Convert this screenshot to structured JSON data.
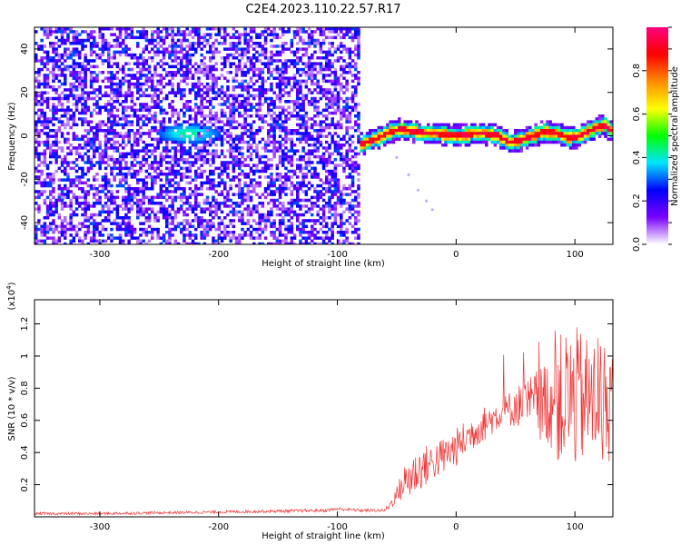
{
  "title": "C2E4.2023.110.22.57.R17",
  "chart_data": [
    {
      "type": "heatmap",
      "name": "spectrogram",
      "xlabel": "Height of straight line (km)",
      "ylabel": "Frequency (Hz)",
      "xlim": [
        -355,
        132
      ],
      "ylim": [
        -50,
        50
      ],
      "x_ticks": [
        -300,
        -200,
        -100,
        0,
        100
      ],
      "y_ticks": [
        -40,
        -20,
        0,
        20,
        40
      ],
      "colorbar": {
        "label": "Normalized spectral amplitude",
        "range": [
          0,
          1
        ],
        "ticks": [
          0.0,
          0.2,
          0.4,
          0.6,
          0.8
        ],
        "colormap": [
          "#ffffff",
          "#7a00ff",
          "#0000ff",
          "#00e5ff",
          "#00ff00",
          "#ffff00",
          "#ff8c00",
          "#ff0000",
          "#ff0080"
        ]
      },
      "noise_region_x": [
        -355,
        -80
      ],
      "signal_track": {
        "x": [
          -85,
          -75,
          -65,
          -55,
          -45,
          -35,
          -25,
          -15,
          -5,
          5,
          15,
          25,
          35,
          45,
          55,
          65,
          75,
          85,
          95,
          105,
          115,
          125,
          132
        ],
        "freq": [
          -5,
          -3,
          -1,
          2,
          3,
          2,
          1,
          1,
          0,
          0,
          1,
          1,
          0,
          -3,
          -2,
          0,
          2,
          1,
          -1,
          0,
          3,
          5,
          2
        ]
      },
      "faint_blob": {
        "x": -225,
        "freq": 1
      },
      "trailing_points": {
        "x": [
          -50,
          -40,
          -32,
          -25,
          -20
        ],
        "freq": [
          -10,
          -18,
          -25,
          -30,
          -34
        ]
      }
    },
    {
      "type": "line",
      "name": "snr",
      "xlabel": "Height of straight line (km)",
      "ylabel": "SNR (10 * v/v)",
      "y_multiplier": "(x10",
      "y_multiplier_exp": "4",
      "xlim": [
        -355,
        132
      ],
      "ylim": [
        0,
        1.35
      ],
      "x_ticks": [
        -300,
        -200,
        -100,
        0,
        100
      ],
      "y_ticks": [
        0.2,
        0.4,
        0.6,
        0.8,
        1.0,
        1.2
      ],
      "color": "#ee3333",
      "envelope": {
        "x": [
          -355,
          -300,
          -200,
          -110,
          -100,
          -80,
          -60,
          -55,
          -50,
          -45,
          -40,
          -30,
          -20,
          -10,
          0,
          10,
          20,
          30,
          40,
          50,
          60,
          70,
          80,
          90,
          100,
          110,
          120,
          132
        ],
        "y": [
          0.02,
          0.02,
          0.03,
          0.04,
          0.05,
          0.04,
          0.04,
          0.08,
          0.14,
          0.2,
          0.24,
          0.3,
          0.34,
          0.38,
          0.43,
          0.5,
          0.56,
          0.61,
          0.65,
          0.69,
          0.7,
          0.71,
          0.72,
          0.72,
          0.74,
          0.73,
          0.72,
          0.7
        ]
      },
      "spread": {
        "x": [
          -355,
          -60,
          -50,
          -40,
          -20,
          0,
          40,
          60,
          80,
          90,
          100,
          110,
          120,
          132
        ],
        "y": [
          0.008,
          0.01,
          0.05,
          0.15,
          0.12,
          0.12,
          0.1,
          0.16,
          0.3,
          0.45,
          0.45,
          0.4,
          0.4,
          0.35
        ]
      }
    }
  ]
}
